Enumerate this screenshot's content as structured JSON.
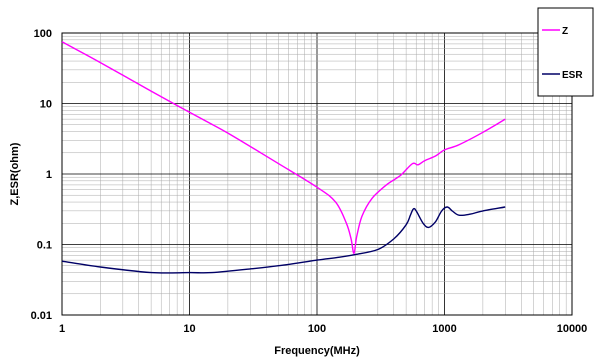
{
  "chart_data": {
    "type": "line",
    "xlabel": "Frequency(MHz)",
    "ylabel": "Z,ESR(ohm)",
    "x_scale": "log",
    "y_scale": "log",
    "xlim": [
      1,
      10000
    ],
    "ylim": [
      0.01,
      100
    ],
    "grid": true,
    "legend_position": "top-right",
    "x_tick_labels": [
      "1",
      "10",
      "100",
      "1000",
      "10000"
    ],
    "y_tick_labels": [
      "0.01",
      "0.1",
      "1",
      "10",
      "100"
    ],
    "series": [
      {
        "name": "Z",
        "color": "#ff00ff",
        "points": [
          [
            1,
            75
          ],
          [
            2,
            38
          ],
          [
            5,
            15
          ],
          [
            10,
            7.5
          ],
          [
            20,
            3.8
          ],
          [
            50,
            1.4
          ],
          [
            100,
            0.65
          ],
          [
            140,
            0.4
          ],
          [
            170,
            0.2
          ],
          [
            185,
            0.12
          ],
          [
            195,
            0.075
          ],
          [
            205,
            0.13
          ],
          [
            225,
            0.25
          ],
          [
            270,
            0.45
          ],
          [
            350,
            0.7
          ],
          [
            450,
            0.95
          ],
          [
            560,
            1.4
          ],
          [
            620,
            1.35
          ],
          [
            700,
            1.55
          ],
          [
            850,
            1.8
          ],
          [
            1000,
            2.2
          ],
          [
            1300,
            2.6
          ],
          [
            2000,
            3.9
          ],
          [
            3000,
            6
          ]
        ]
      },
      {
        "name": "ESR",
        "color": "#000066",
        "points": [
          [
            1,
            0.058
          ],
          [
            2,
            0.048
          ],
          [
            5,
            0.04
          ],
          [
            10,
            0.04
          ],
          [
            15,
            0.04
          ],
          [
            30,
            0.045
          ],
          [
            50,
            0.05
          ],
          [
            100,
            0.06
          ],
          [
            150,
            0.066
          ],
          [
            200,
            0.072
          ],
          [
            300,
            0.085
          ],
          [
            400,
            0.12
          ],
          [
            500,
            0.19
          ],
          [
            540,
            0.26
          ],
          [
            570,
            0.32
          ],
          [
            600,
            0.3
          ],
          [
            680,
            0.2
          ],
          [
            750,
            0.175
          ],
          [
            850,
            0.21
          ],
          [
            950,
            0.3
          ],
          [
            1050,
            0.34
          ],
          [
            1150,
            0.3
          ],
          [
            1300,
            0.26
          ],
          [
            1600,
            0.27
          ],
          [
            2000,
            0.3
          ],
          [
            3000,
            0.34
          ]
        ]
      }
    ]
  }
}
